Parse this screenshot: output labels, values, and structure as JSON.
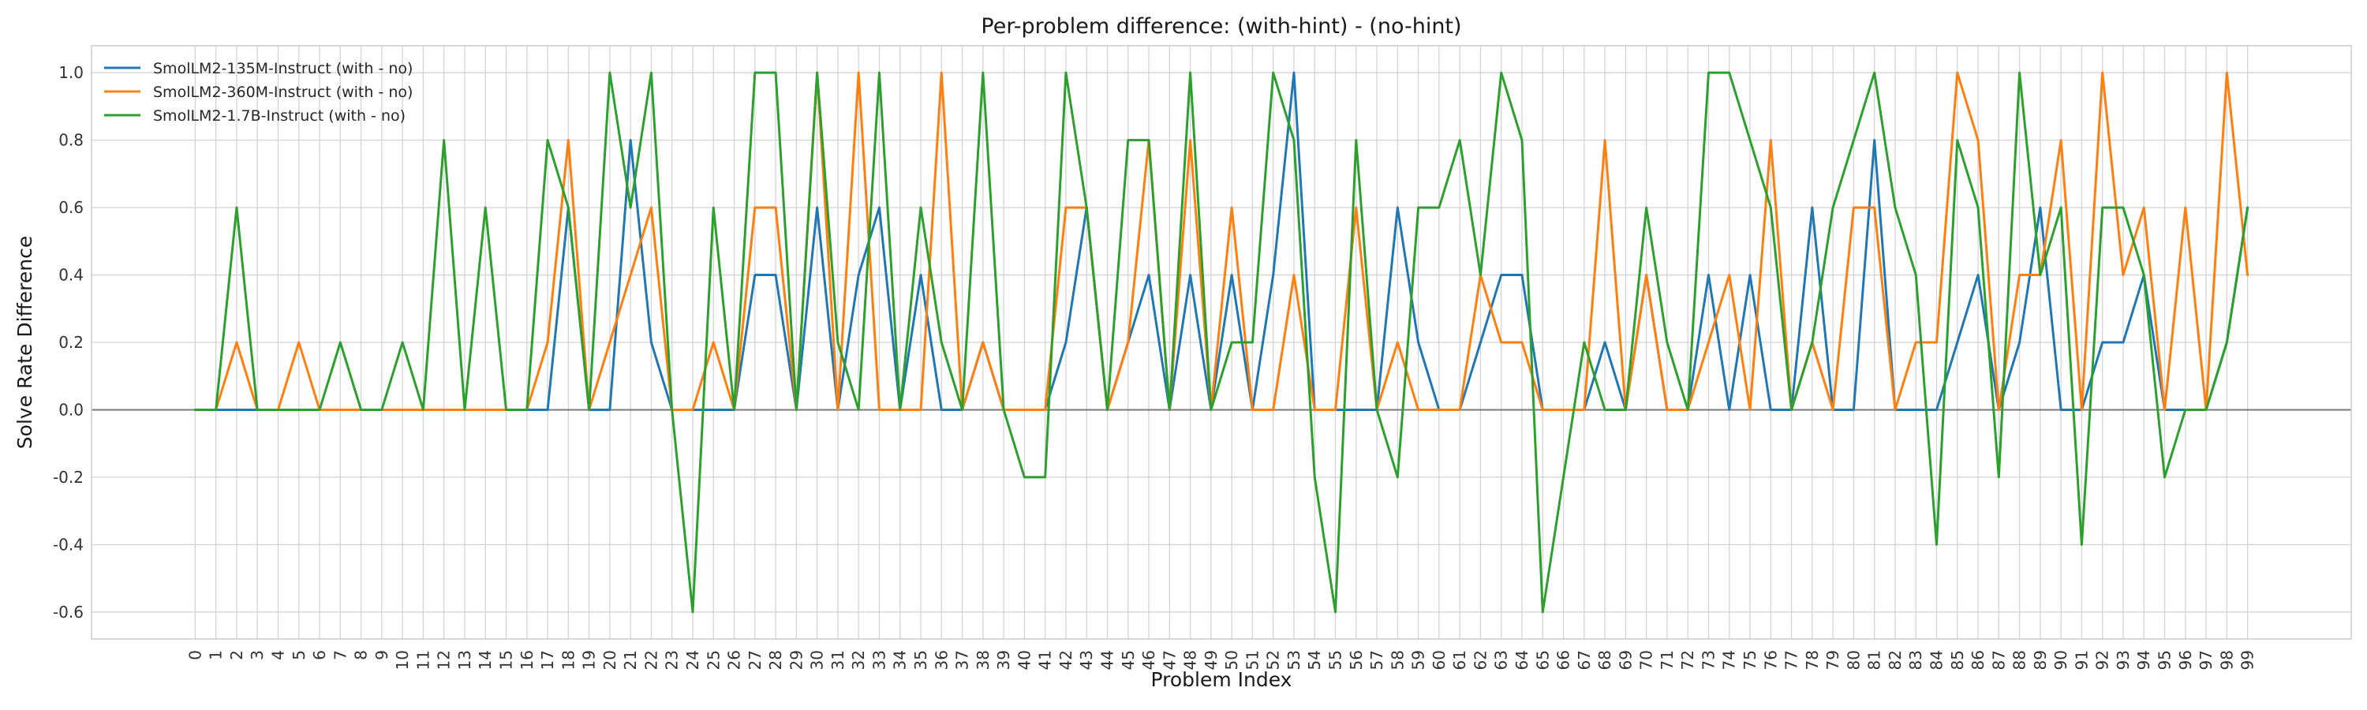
{
  "chart_data": {
    "type": "line",
    "title": "Per-problem difference: (with-hint) - (no-hint)",
    "xlabel": "Problem Index",
    "ylabel": "Solve Rate Difference",
    "xlim": [
      -5,
      104
    ],
    "ylim": [
      -0.68,
      1.08
    ],
    "yticks": [
      -0.6,
      -0.4,
      -0.2,
      0.0,
      0.2,
      0.4,
      0.6,
      0.8,
      1.0
    ],
    "grid": true,
    "legend_position": "top-left",
    "zero_line": true,
    "x": [
      0,
      1,
      2,
      3,
      4,
      5,
      6,
      7,
      8,
      9,
      10,
      11,
      12,
      13,
      14,
      15,
      16,
      17,
      18,
      19,
      20,
      21,
      22,
      23,
      24,
      25,
      26,
      27,
      28,
      29,
      30,
      31,
      32,
      33,
      34,
      35,
      36,
      37,
      38,
      39,
      40,
      41,
      42,
      43,
      44,
      45,
      46,
      47,
      48,
      49,
      50,
      51,
      52,
      53,
      54,
      55,
      56,
      57,
      58,
      59,
      60,
      61,
      62,
      63,
      64,
      65,
      66,
      67,
      68,
      69,
      70,
      71,
      72,
      73,
      74,
      75,
      76,
      77,
      78,
      79,
      80,
      81,
      82,
      83,
      84,
      85,
      86,
      87,
      88,
      89,
      90,
      91,
      92,
      93,
      94,
      95,
      96,
      97,
      98,
      99
    ],
    "series": [
      {
        "name": "SmolLM2-135M-Instruct (with - no)",
        "color": "#1f77b4",
        "values": [
          0,
          0,
          0,
          0,
          0,
          0,
          0,
          0,
          0,
          0,
          0,
          0,
          0,
          0,
          0,
          0,
          0,
          0,
          0.6,
          0,
          0,
          0.8,
          0.2,
          0,
          0,
          0,
          0,
          0.4,
          0.4,
          0,
          0.6,
          0,
          0.4,
          0.6,
          0,
          0.4,
          0,
          0,
          0.2,
          0,
          0,
          0,
          0.2,
          0.6,
          0,
          0.2,
          0.4,
          0,
          0.4,
          0,
          0.4,
          0,
          0.4,
          1.0,
          0,
          0,
          0,
          0,
          0.6,
          0.2,
          0,
          0,
          0.2,
          0.4,
          0.4,
          0,
          0,
          0,
          0.2,
          0,
          0.4,
          0,
          0,
          0.4,
          0,
          0.4,
          0,
          0,
          0.6,
          0,
          0,
          0.8,
          0,
          0,
          0,
          0.2,
          0.4,
          0,
          0.2,
          0.6,
          0,
          0,
          0.2,
          0.2,
          0.4,
          0,
          0,
          0,
          0.2,
          0.6
        ]
      },
      {
        "name": "SmolLM2-360M-Instruct (with - no)",
        "color": "#ff7f0e",
        "values": [
          0,
          0,
          0.2,
          0,
          0,
          0.2,
          0,
          0,
          0,
          0,
          0,
          0,
          0,
          0,
          0,
          0,
          0,
          0.2,
          0.8,
          0,
          0.2,
          0.4,
          0.6,
          0,
          0,
          0.2,
          0,
          0.6,
          0.6,
          0,
          1.0,
          0,
          1.0,
          0,
          0,
          0,
          1.0,
          0,
          0.2,
          0,
          0,
          0,
          0.6,
          0.6,
          0,
          0.2,
          0.8,
          0,
          0.8,
          0,
          0.6,
          0,
          0,
          0.4,
          0,
          0,
          0.6,
          0,
          0.2,
          0,
          0,
          0,
          0.4,
          0.2,
          0.2,
          0,
          0,
          0,
          0.8,
          0,
          0.4,
          0,
          0,
          0.2,
          0.4,
          0,
          0.8,
          0,
          0.2,
          0,
          0.6,
          0.6,
          0,
          0.2,
          0.2,
          1.0,
          0.8,
          0,
          0.4,
          0.4,
          0.8,
          0,
          1.0,
          0.4,
          0.6,
          0,
          0.6,
          0,
          1.0,
          0.4
        ]
      },
      {
        "name": "SmolLM2-1.7B-Instruct (with - no)",
        "color": "#2ca02c",
        "values": [
          0,
          0,
          0.6,
          0,
          0,
          0,
          0,
          0.2,
          0,
          0,
          0.2,
          0,
          0.8,
          0,
          0.6,
          0,
          0,
          0.8,
          0.6,
          0,
          1.0,
          0.6,
          1.0,
          0,
          -0.6,
          0.6,
          0,
          1.0,
          1.0,
          0,
          1.0,
          0.2,
          0,
          1.0,
          0,
          0.6,
          0.2,
          0,
          1.0,
          0,
          -0.2,
          -0.2,
          1.0,
          0.6,
          0,
          0.8,
          0.8,
          0,
          1.0,
          0,
          0.2,
          0.2,
          1.0,
          0.8,
          -0.2,
          -0.6,
          0.8,
          0,
          -0.2,
          0.6,
          0.6,
          0.8,
          0.4,
          1.0,
          0.8,
          -0.6,
          -0.2,
          0.2,
          0,
          0,
          0.6,
          0.2,
          0,
          1.0,
          1.0,
          0.8,
          0.6,
          0,
          0.2,
          0.6,
          0.8,
          1.0,
          0.6,
          0.4,
          -0.4,
          0.8,
          0.6,
          -0.2,
          1.0,
          0.4,
          0.6,
          -0.4,
          0.6,
          0.6,
          0.4,
          -0.2,
          0,
          0,
          0.2,
          0.6
        ]
      }
    ]
  }
}
